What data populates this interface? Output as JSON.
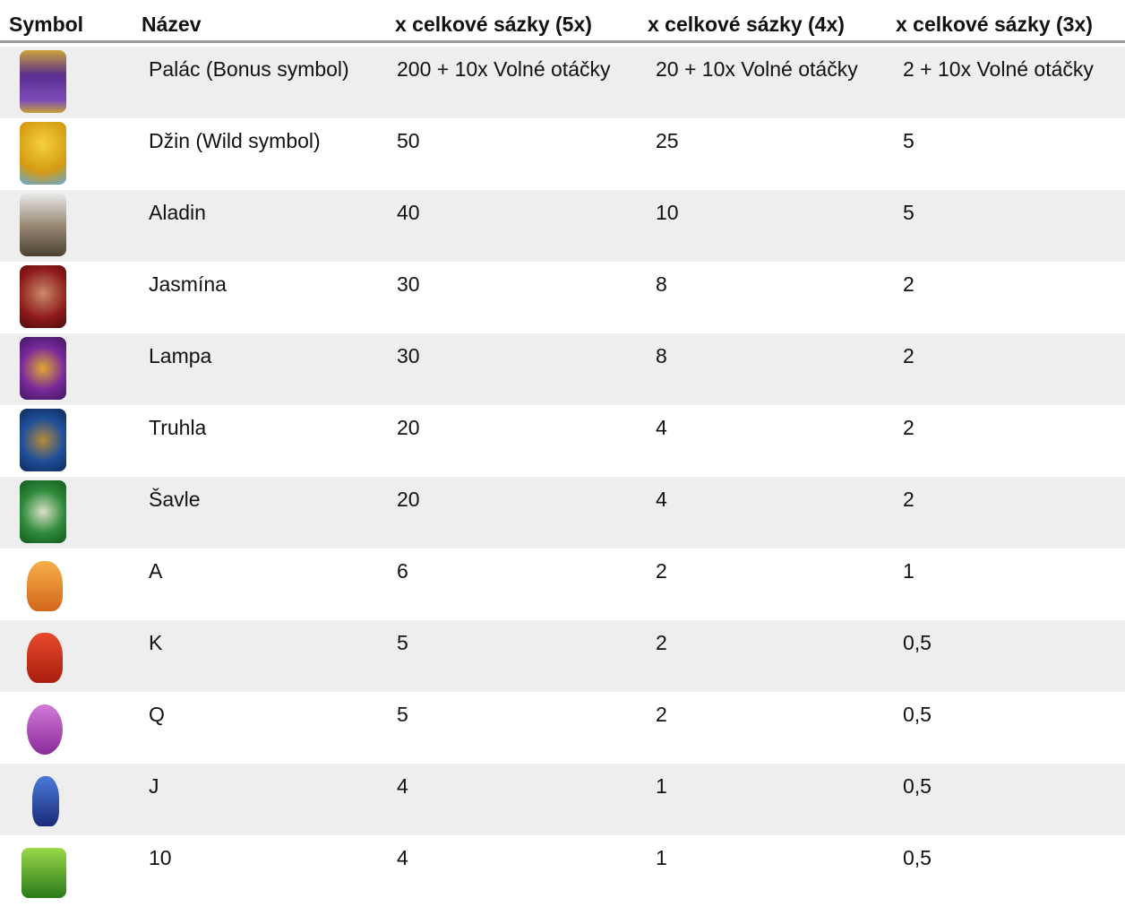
{
  "table": {
    "headers": [
      "Symbol",
      "Název",
      "x celkové sázky (5x)",
      "x celkové sázky (4x)",
      "x celkové sázky (3x)"
    ],
    "rows": [
      [
        "Palác (Bonus symbol)",
        "200 + 10x Volné otáčky",
        "20 + 10x Volné otáčky",
        "2 + 10x Volné otáčky"
      ],
      [
        "Džin (Wild symbol)",
        "50",
        "25",
        "5"
      ],
      [
        "Aladin",
        "40",
        "10",
        "5"
      ],
      [
        "Jasmína",
        "30",
        "8",
        "2"
      ],
      [
        "Lampa",
        "30",
        "8",
        "2"
      ],
      [
        "Truhla",
        "20",
        "4",
        "2"
      ],
      [
        "Šavle",
        "20",
        "4",
        "2"
      ],
      [
        "A",
        "6",
        "2",
        "1"
      ],
      [
        "K",
        "5",
        "2",
        "0,5"
      ],
      [
        "Q",
        "5",
        "2",
        "0,5"
      ],
      [
        "J",
        "4",
        "1",
        "0,5"
      ],
      [
        "10",
        "4",
        "1",
        "0,5"
      ]
    ]
  }
}
